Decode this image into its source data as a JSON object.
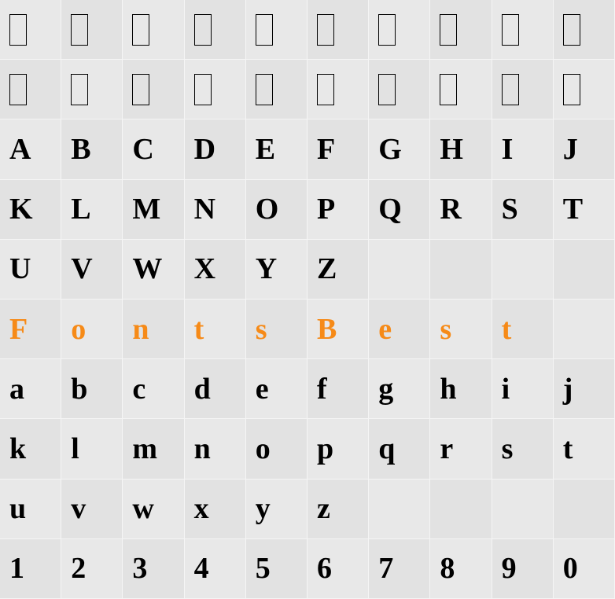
{
  "grid": {
    "columns": 10,
    "rows": 10,
    "cell_fontsize": 38,
    "font_family": "serif-bold",
    "font_weight": "bold",
    "background_color_a": "#e8e8e8",
    "background_color_b": "#e2e2e2",
    "border_color": "#f5f5f5",
    "text_color": "#000000",
    "accent_color": "#f68a17",
    "notdef_box": {
      "width": 22,
      "height": 40,
      "border": "#000000"
    },
    "cells": [
      [
        {
          "type": "notdef"
        },
        {
          "type": "notdef"
        },
        {
          "type": "notdef"
        },
        {
          "type": "notdef"
        },
        {
          "type": "notdef"
        },
        {
          "type": "notdef"
        },
        {
          "type": "notdef"
        },
        {
          "type": "notdef"
        },
        {
          "type": "notdef"
        },
        {
          "type": "notdef"
        }
      ],
      [
        {
          "type": "notdef"
        },
        {
          "type": "notdef"
        },
        {
          "type": "notdef"
        },
        {
          "type": "notdef"
        },
        {
          "type": "notdef"
        },
        {
          "type": "notdef"
        },
        {
          "type": "notdef"
        },
        {
          "type": "notdef"
        },
        {
          "type": "notdef"
        },
        {
          "type": "notdef"
        }
      ],
      [
        {
          "type": "glyph",
          "char": "A"
        },
        {
          "type": "glyph",
          "char": "B"
        },
        {
          "type": "glyph",
          "char": "C"
        },
        {
          "type": "glyph",
          "char": "D"
        },
        {
          "type": "glyph",
          "char": "E"
        },
        {
          "type": "glyph",
          "char": "F"
        },
        {
          "type": "glyph",
          "char": "G"
        },
        {
          "type": "glyph",
          "char": "H"
        },
        {
          "type": "glyph",
          "char": "I"
        },
        {
          "type": "glyph",
          "char": "J"
        }
      ],
      [
        {
          "type": "glyph",
          "char": "K"
        },
        {
          "type": "glyph",
          "char": "L"
        },
        {
          "type": "glyph",
          "char": "M"
        },
        {
          "type": "glyph",
          "char": "N"
        },
        {
          "type": "glyph",
          "char": "O"
        },
        {
          "type": "glyph",
          "char": "P"
        },
        {
          "type": "glyph",
          "char": "Q"
        },
        {
          "type": "glyph",
          "char": "R"
        },
        {
          "type": "glyph",
          "char": "S"
        },
        {
          "type": "glyph",
          "char": "T"
        }
      ],
      [
        {
          "type": "glyph",
          "char": "U"
        },
        {
          "type": "glyph",
          "char": "V"
        },
        {
          "type": "glyph",
          "char": "W"
        },
        {
          "type": "glyph",
          "char": "X"
        },
        {
          "type": "glyph",
          "char": "Y"
        },
        {
          "type": "glyph",
          "char": "Z"
        },
        {
          "type": "empty"
        },
        {
          "type": "empty"
        },
        {
          "type": "empty"
        },
        {
          "type": "empty"
        }
      ],
      [
        {
          "type": "glyph",
          "char": "F",
          "accent": true
        },
        {
          "type": "glyph",
          "char": "o",
          "accent": true
        },
        {
          "type": "glyph",
          "char": "n",
          "accent": true
        },
        {
          "type": "glyph",
          "char": "t",
          "accent": true
        },
        {
          "type": "glyph",
          "char": "s",
          "accent": true
        },
        {
          "type": "glyph",
          "char": "B",
          "accent": true
        },
        {
          "type": "glyph",
          "char": "e",
          "accent": true
        },
        {
          "type": "glyph",
          "char": "s",
          "accent": true
        },
        {
          "type": "glyph",
          "char": "t",
          "accent": true
        },
        {
          "type": "empty"
        }
      ],
      [
        {
          "type": "glyph",
          "char": "a"
        },
        {
          "type": "glyph",
          "char": "b"
        },
        {
          "type": "glyph",
          "char": "c"
        },
        {
          "type": "glyph",
          "char": "d"
        },
        {
          "type": "glyph",
          "char": "e"
        },
        {
          "type": "glyph",
          "char": "f"
        },
        {
          "type": "glyph",
          "char": "g"
        },
        {
          "type": "glyph",
          "char": "h"
        },
        {
          "type": "glyph",
          "char": "i"
        },
        {
          "type": "glyph",
          "char": "j"
        }
      ],
      [
        {
          "type": "glyph",
          "char": "k"
        },
        {
          "type": "glyph",
          "char": "l"
        },
        {
          "type": "glyph",
          "char": "m"
        },
        {
          "type": "glyph",
          "char": "n"
        },
        {
          "type": "glyph",
          "char": "o"
        },
        {
          "type": "glyph",
          "char": "p"
        },
        {
          "type": "glyph",
          "char": "q"
        },
        {
          "type": "glyph",
          "char": "r"
        },
        {
          "type": "glyph",
          "char": "s"
        },
        {
          "type": "glyph",
          "char": "t"
        }
      ],
      [
        {
          "type": "glyph",
          "char": "u"
        },
        {
          "type": "glyph",
          "char": "v"
        },
        {
          "type": "glyph",
          "char": "w"
        },
        {
          "type": "glyph",
          "char": "x"
        },
        {
          "type": "glyph",
          "char": "y"
        },
        {
          "type": "glyph",
          "char": "z"
        },
        {
          "type": "empty"
        },
        {
          "type": "empty"
        },
        {
          "type": "empty"
        },
        {
          "type": "empty"
        }
      ],
      [
        {
          "type": "glyph",
          "char": "1"
        },
        {
          "type": "glyph",
          "char": "2"
        },
        {
          "type": "glyph",
          "char": "3"
        },
        {
          "type": "glyph",
          "char": "4"
        },
        {
          "type": "glyph",
          "char": "5"
        },
        {
          "type": "glyph",
          "char": "6"
        },
        {
          "type": "glyph",
          "char": "7"
        },
        {
          "type": "glyph",
          "char": "8"
        },
        {
          "type": "glyph",
          "char": "9"
        },
        {
          "type": "glyph",
          "char": "0"
        }
      ]
    ]
  }
}
